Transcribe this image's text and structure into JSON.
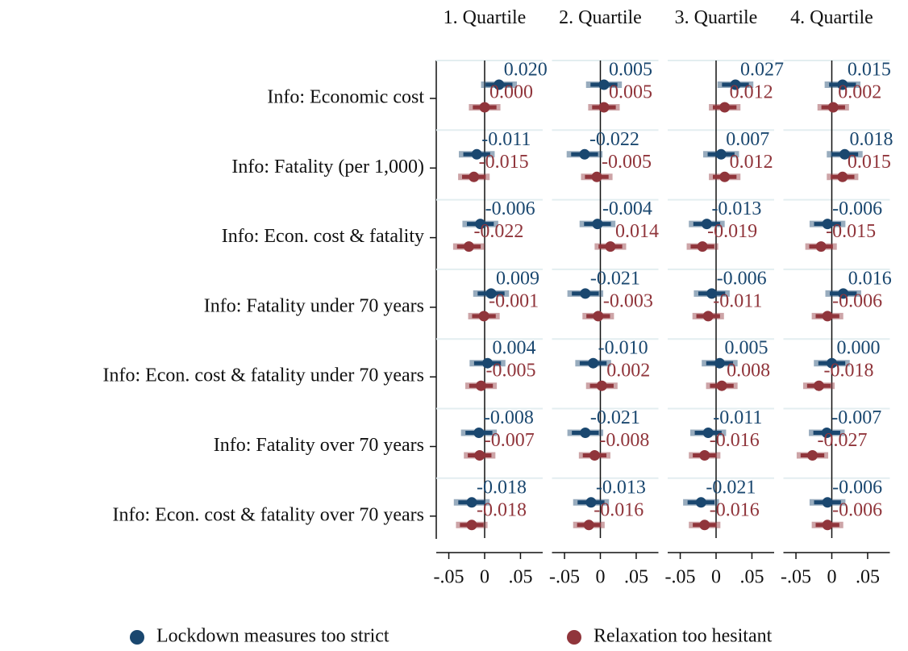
{
  "chart_data": [
    {
      "type": "coefplot",
      "title": "1. Quartile",
      "categories": [
        "Info: Economic cost",
        "Info: Fatality (per 1,000)",
        "Info: Econ. cost & fatality",
        "Info: Fatality under 70 years",
        "Info: Econ. cost & fatality under 70 years",
        "Info: Fatality over 70 years",
        "Info: Econ. cost & fatality over 70 years"
      ],
      "xlim": [
        -0.0675,
        0.081
      ],
      "xticks": [
        {
          "value": -0.05,
          "label": "-.05"
        },
        0,
        {
          "value": 0.05,
          "label": ".05"
        }
      ],
      "series": [
        {
          "name": "Lockdown measures too strict",
          "color": "#1a476f",
          "values": [
            0.02,
            -0.011,
            -0.006,
            0.009,
            0.004,
            -0.008,
            -0.018
          ],
          "value_labels": [
            "0.020",
            "-0.011",
            "-0.006",
            "0.009",
            "0.004",
            "-0.008",
            "-0.018"
          ],
          "errors": [
            0.025,
            0.025,
            0.025,
            0.025,
            0.025,
            0.025,
            0.025
          ]
        },
        {
          "name": "Relaxation too hesitant",
          "color": "#90353b",
          "values": [
            0,
            -0.015,
            -0.022,
            -0.001,
            -0.005,
            -0.007,
            -0.018
          ],
          "value_labels": [
            "0.000",
            "-0.015",
            "-0.022",
            "-0.001",
            "-0.005",
            "-0.007",
            "-0.018"
          ],
          "errors": [
            0.022,
            0.022,
            0.022,
            0.022,
            0.022,
            0.022,
            0.022
          ]
        }
      ]
    },
    {
      "type": "coefplot",
      "title": "2. Quartile",
      "xlim": [
        -0.0675,
        0.081
      ],
      "xticks": [
        {
          "value": -0.05,
          "label": "-.05"
        },
        0,
        {
          "value": 0.05,
          "label": ".05"
        }
      ],
      "series": [
        {
          "color": "#1a476f",
          "values": [
            0.005,
            -0.022,
            -0.004,
            -0.021,
            -0.01,
            -0.021,
            -0.013
          ],
          "value_labels": [
            "0.005",
            "-0.022",
            "-0.004",
            "-0.021",
            "-0.010",
            "-0.021",
            "-0.013"
          ],
          "errors": [
            0.025,
            0.025,
            0.025,
            0.025,
            0.025,
            0.025,
            0.025
          ]
        },
        {
          "color": "#90353b",
          "values": [
            0.005,
            -0.005,
            0.014,
            -0.003,
            0.002,
            -0.008,
            -0.016
          ],
          "value_labels": [
            "0.005",
            "-0.005",
            "0.014",
            "-0.003",
            "0.002",
            "-0.008",
            "-0.016"
          ],
          "errors": [
            0.022,
            0.022,
            0.022,
            0.022,
            0.022,
            0.022,
            0.022
          ]
        }
      ]
    },
    {
      "type": "coefplot",
      "title": "3. Quartile",
      "xlim": [
        -0.0675,
        0.081
      ],
      "xticks": [
        {
          "value": -0.05,
          "label": "-.05"
        },
        0,
        {
          "value": 0.05,
          "label": ".05"
        }
      ],
      "series": [
        {
          "color": "#1a476f",
          "values": [
            0.027,
            0.007,
            -0.013,
            -0.006,
            0.005,
            -0.011,
            -0.021
          ],
          "value_labels": [
            "0.027",
            "0.007",
            "-0.013",
            "-0.006",
            "0.005",
            "-0.011",
            "-0.021"
          ],
          "errors": [
            0.025,
            0.025,
            0.025,
            0.025,
            0.025,
            0.025,
            0.025
          ]
        },
        {
          "color": "#90353b",
          "values": [
            0.012,
            0.012,
            -0.019,
            -0.011,
            0.008,
            -0.016,
            -0.016
          ],
          "value_labels": [
            "0.012",
            "0.012",
            "-0.019",
            "-0.011",
            "0.008",
            "-0.016",
            "-0.016"
          ],
          "errors": [
            0.022,
            0.022,
            0.022,
            0.022,
            0.022,
            0.022,
            0.022
          ]
        }
      ]
    },
    {
      "type": "coefplot",
      "title": "4. Quartile",
      "xlim": [
        -0.0675,
        0.081
      ],
      "xticks": [
        {
          "value": -0.05,
          "label": "-.05"
        },
        0,
        {
          "value": 0.05,
          "label": ".05"
        }
      ],
      "series": [
        {
          "color": "#1a476f",
          "values": [
            0.015,
            0.018,
            -0.006,
            0.016,
            0,
            -0.007,
            -0.006
          ],
          "value_labels": [
            "0.015",
            "0.018",
            "-0.006",
            "0.016",
            "0.000",
            "-0.007",
            "-0.006"
          ],
          "errors": [
            0.025,
            0.025,
            0.025,
            0.025,
            0.025,
            0.025,
            0.025
          ]
        },
        {
          "color": "#90353b",
          "values": [
            0.002,
            0.015,
            -0.015,
            -0.006,
            -0.018,
            -0.027,
            -0.006
          ],
          "value_labels": [
            "0.002",
            "0.015",
            "-0.015",
            "-0.006",
            "-0.018",
            "-0.027",
            "-0.006"
          ],
          "errors": [
            0.022,
            0.022,
            0.022,
            0.022,
            0.022,
            0.022,
            0.022
          ]
        }
      ]
    }
  ]
}
